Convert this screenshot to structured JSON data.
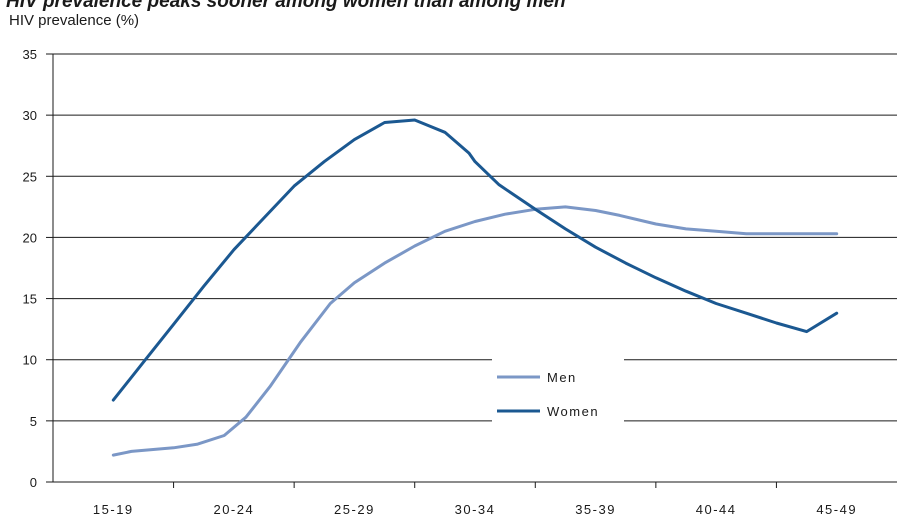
{
  "chart_data": {
    "type": "line",
    "title": "HIV prevalence peaks sooner among women than among men",
    "ylabel": "HIV prevalence (%)",
    "xlabel": "",
    "categories": [
      "15-19",
      "20-24",
      "25-29",
      "30-34",
      "35-39",
      "40-44",
      "45-49"
    ],
    "ylim": [
      0,
      35
    ],
    "yticks": [
      0,
      5,
      10,
      15,
      20,
      25,
      30,
      35
    ],
    "grid": true,
    "legend_position": "center-right",
    "series": [
      {
        "name": "Men",
        "color": "#7b97c6",
        "x": [
          1.0,
          1.15,
          1.5,
          1.7,
          1.92,
          2.1,
          2.3,
          2.55,
          2.8,
          3.0,
          3.25,
          3.5,
          3.75,
          4.0,
          4.25,
          4.5,
          4.75,
          5.0,
          5.2,
          5.5,
          5.75,
          6.0,
          6.25,
          6.5,
          6.75,
          7.0
        ],
        "values": [
          2.2,
          2.5,
          2.8,
          3.1,
          3.8,
          5.3,
          7.8,
          11.4,
          14.6,
          16.3,
          17.9,
          19.3,
          20.5,
          21.3,
          21.9,
          22.3,
          22.5,
          22.2,
          21.8,
          21.1,
          20.7,
          20.5,
          20.3,
          20.3,
          20.3,
          20.3
        ]
      },
      {
        "name": "Women",
        "color": "#1b5891",
        "x": [
          1.0,
          1.25,
          1.5,
          1.75,
          2.0,
          2.25,
          2.5,
          2.75,
          3.0,
          3.25,
          3.5,
          3.75,
          3.95,
          4.0,
          4.2,
          4.5,
          4.75,
          5.0,
          5.25,
          5.5,
          5.75,
          6.0,
          6.25,
          6.5,
          6.75,
          7.0
        ],
        "values": [
          6.7,
          9.8,
          12.9,
          16.0,
          19.0,
          21.6,
          24.2,
          26.2,
          28.0,
          29.4,
          29.6,
          28.6,
          26.9,
          26.2,
          24.3,
          22.3,
          20.7,
          19.2,
          17.9,
          16.7,
          15.6,
          14.6,
          13.8,
          13.0,
          12.3,
          13.8
        ]
      }
    ]
  }
}
